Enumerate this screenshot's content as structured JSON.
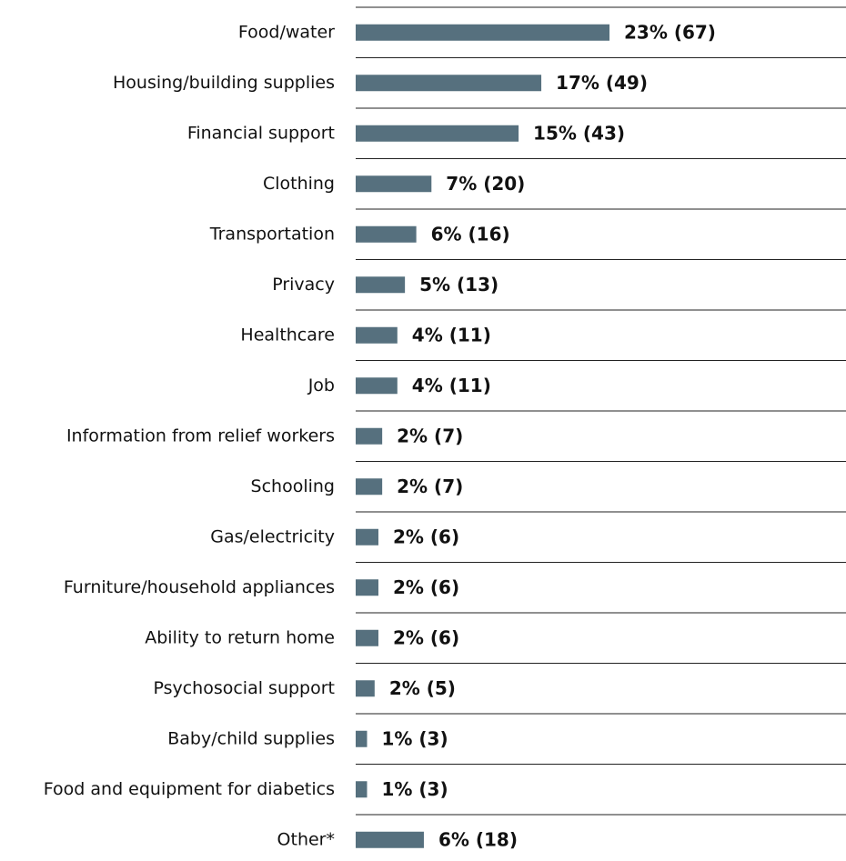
{
  "chart_data": {
    "type": "hbar",
    "color": "#56707e",
    "categories": [
      "Food/water",
      "Housing/building supplies",
      "Financial support",
      "Clothing",
      "Transportation",
      "Privacy",
      "Healthcare",
      "Job",
      "Information from relief workers",
      "Schooling",
      "Gas/electricity",
      "Furniture/household appliances",
      "Ability to return home",
      "Psychosocial support",
      "Baby/child supplies",
      "Food and equipment for diabetics",
      "Other*"
    ],
    "values": [
      67,
      49,
      43,
      20,
      16,
      13,
      11,
      11,
      7,
      7,
      6,
      6,
      6,
      5,
      3,
      3,
      18
    ],
    "value_labels": [
      "23% (67)",
      "17% (49)",
      "15% (43)",
      "7% (20)",
      "6% (16)",
      "5% (13)",
      "4% (11)",
      "4% (11)",
      "2% (7)",
      "2% (7)",
      "2% (6)",
      "2% (6)",
      "2% (6)",
      "2% (5)",
      "1% (3)",
      "1% (3)",
      "6% (18)"
    ]
  }
}
